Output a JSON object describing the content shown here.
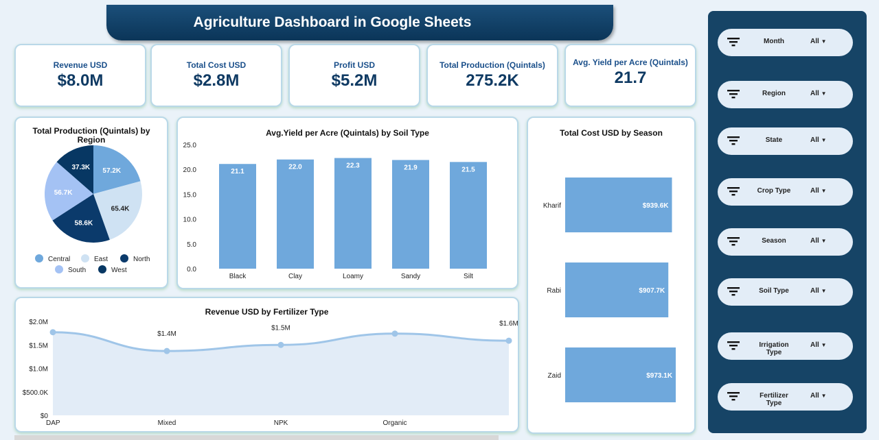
{
  "title": "Agriculture Dashboard in Google Sheets",
  "kpis": [
    {
      "label": "Revenue USD",
      "value": "$8.0M"
    },
    {
      "label": "Total Cost USD",
      "value": "$2.8M"
    },
    {
      "label": "Profit USD",
      "value": "$5.2M"
    },
    {
      "label": "Total Production (Quintals)",
      "value": "275.2K"
    },
    {
      "label": "Avg. Yield per Acre (Quintals)",
      "value": "21.7"
    }
  ],
  "filters": [
    {
      "label": "Month",
      "value": "All"
    },
    {
      "label": "Region",
      "value": "All"
    },
    {
      "label": "State",
      "value": "All"
    },
    {
      "label": "Crop Type",
      "value": "All"
    },
    {
      "label": "Season",
      "value": "All"
    },
    {
      "label": "Soil Type",
      "value": "All"
    },
    {
      "label": "Irrigation Type",
      "value": "All"
    },
    {
      "label": "Fertilizer Type",
      "value": "All"
    }
  ],
  "chart_data": [
    {
      "type": "pie",
      "title": "Total Production (Quintals) by Region",
      "legend": "bottom",
      "slices": [
        {
          "name": "Central",
          "value": 57.2,
          "label": "57.2K",
          "color": "#6fa8dc"
        },
        {
          "name": "East",
          "value": 65.4,
          "label": "65.4K",
          "color": "#cfe2f3"
        },
        {
          "name": "North",
          "value": 58.6,
          "label": "58.6K",
          "color": "#0b3a6b"
        },
        {
          "name": "South",
          "value": 56.7,
          "label": "56.7K",
          "color": "#a4c2f4"
        },
        {
          "name": "West",
          "value": 37.3,
          "label": "37.3K",
          "color": "#073763"
        }
      ]
    },
    {
      "type": "bar",
      "title": "Avg.Yield per Acre (Quintals) by Soil Type",
      "categories": [
        "Black",
        "Clay",
        "Loamy",
        "Sandy",
        "Silt"
      ],
      "values": [
        21.1,
        22.0,
        22.3,
        21.9,
        21.5
      ],
      "labels": [
        "21.1",
        "22.0",
        "22.3",
        "21.9",
        "21.5"
      ],
      "ylim": [
        0,
        25
      ],
      "yticks": [
        "0.0",
        "5.0",
        "10.0",
        "15.0",
        "20.0",
        "25.0"
      ],
      "color": "#6fa8dc"
    },
    {
      "type": "bar",
      "orientation": "horizontal",
      "title": "Total Cost USD by Season",
      "categories": [
        "Kharif",
        "Rabi",
        "Zaid"
      ],
      "values": [
        939.6,
        907.7,
        973.1
      ],
      "labels": [
        "$939.6K",
        "$907.7K",
        "$973.1K"
      ],
      "color": "#6fa8dc"
    },
    {
      "type": "area",
      "title": "Revenue USD by Fertilizer Type",
      "categories": [
        "DAP",
        "Mixed",
        "NPK",
        "Organic",
        ""
      ],
      "values": [
        1.77,
        1.37,
        1.5,
        1.74,
        1.59
      ],
      "labels": [
        "",
        "$1.4M",
        "$1.5M",
        "",
        "$1.6M"
      ],
      "ylim": [
        0,
        2.0
      ],
      "yticks": [
        "$0",
        "$500.0K",
        "$1.0M",
        "$1.5M",
        "$2.0M"
      ],
      "color": "#9fc5e8"
    }
  ]
}
